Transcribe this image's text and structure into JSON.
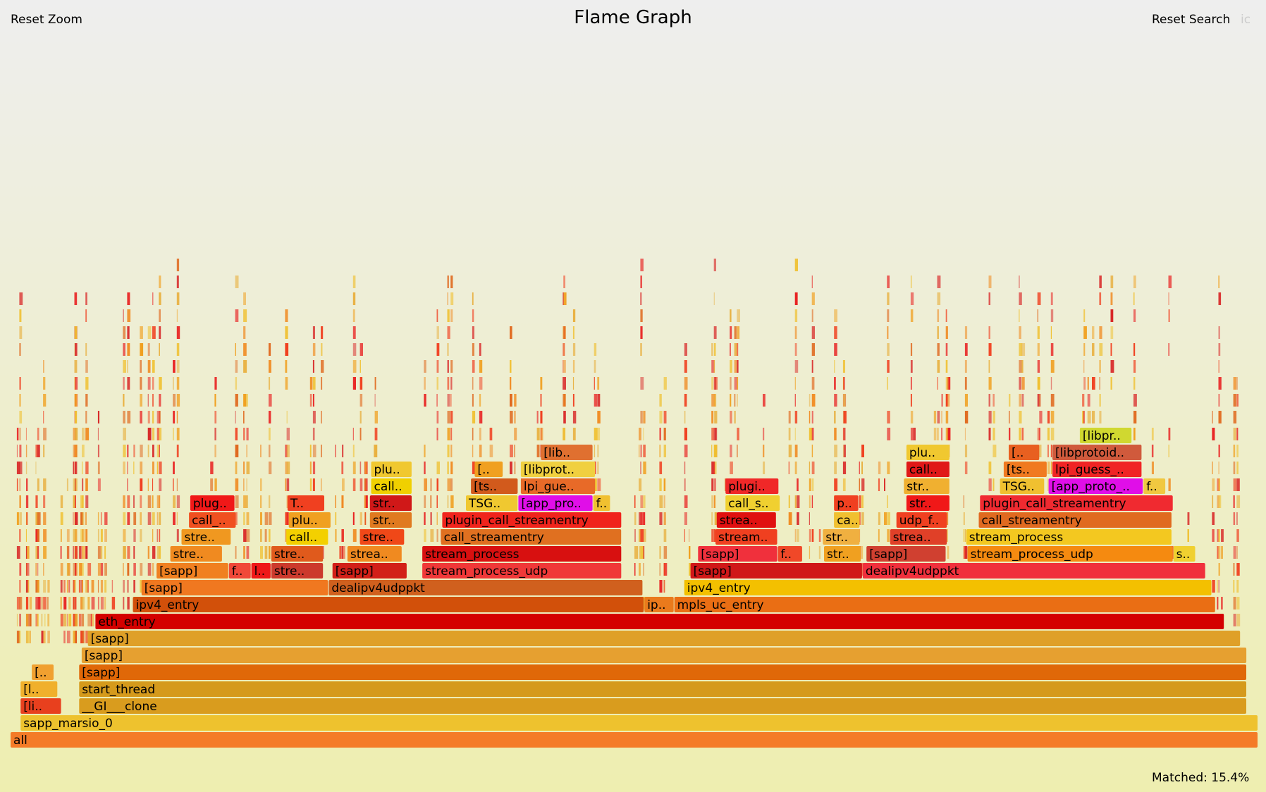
{
  "controls": {
    "reset_zoom": "Reset Zoom",
    "title": "Flame Graph",
    "reset_search": "Reset Search",
    "ic": "ic",
    "matched_label": "Matched:",
    "matched_value": "15.4%"
  },
  "chart_data": {
    "type": "flame graph",
    "title": "Flame Graph",
    "total_width_units": 1000,
    "frames": [
      {
        "name": "all",
        "depth": 0,
        "start": 0,
        "width": 1000,
        "color": "#f47b28"
      },
      {
        "name": "sapp_marsio_0",
        "depth": 1,
        "start": 8,
        "width": 992,
        "color": "#eec22e"
      },
      {
        "name": "[li..",
        "depth": 2,
        "start": 8,
        "width": 33,
        "color": "#e8401e"
      },
      {
        "name": "__GI___clone",
        "depth": 2,
        "start": 55,
        "width": 936,
        "color": "#d99c1e"
      },
      {
        "name": "[l..",
        "depth": 3,
        "start": 8,
        "width": 30,
        "color": "#f0b02c"
      },
      {
        "name": "start_thread",
        "depth": 3,
        "start": 55,
        "width": 936,
        "color": "#d59a1c"
      },
      {
        "name": "[..",
        "depth": 4,
        "start": 17,
        "width": 18,
        "color": "#f0a030"
      },
      {
        "name": "[sapp]",
        "depth": 4,
        "start": 55,
        "width": 936,
        "color": "#e06808"
      },
      {
        "name": "[sapp]",
        "depth": 5,
        "start": 57,
        "width": 934,
        "color": "#e6a030"
      },
      {
        "name": "[sapp]",
        "depth": 6,
        "start": 62,
        "width": 924,
        "color": "#dfa028"
      },
      {
        "name": "eth_entry",
        "depth": 7,
        "start": 68,
        "width": 905,
        "color": "#d40000"
      },
      {
        "name": "ipv4_entry",
        "depth": 8,
        "start": 98,
        "width": 410,
        "color": "#d2500a"
      },
      {
        "name": "ip..",
        "depth": 8,
        "start": 508,
        "width": 24,
        "color": "#ea7a1c"
      },
      {
        "name": "mpls_uc_entry",
        "depth": 8,
        "start": 532,
        "width": 434,
        "color": "#ea6e14"
      },
      {
        "name": "[sapp]",
        "depth": 9,
        "start": 105,
        "width": 150,
        "color": "#f07820"
      },
      {
        "name": "dealipv4udppkt",
        "depth": 9,
        "start": 255,
        "width": 252,
        "color": "#d0601e"
      },
      {
        "name": "ipv4_entry",
        "depth": 9,
        "start": 540,
        "width": 423,
        "color": "#f3c000"
      },
      {
        "name": "[sapp]",
        "depth": 10,
        "start": 117,
        "width": 58,
        "color": "#f08020"
      },
      {
        "name": "f..",
        "depth": 10,
        "start": 175,
        "width": 18,
        "color": "#f04838"
      },
      {
        "name": "l..",
        "depth": 10,
        "start": 193,
        "width": 16,
        "color": "#ee1818"
      },
      {
        "name": "stre..",
        "depth": 10,
        "start": 209,
        "width": 42,
        "color": "#cc3a2c"
      },
      {
        "name": "[sapp]",
        "depth": 10,
        "start": 258,
        "width": 60,
        "color": "#d22018"
      },
      {
        "name": "stream_process_udp",
        "depth": 10,
        "start": 330,
        "width": 160,
        "color": "#f03838"
      },
      {
        "name": "[sapp]",
        "depth": 10,
        "start": 545,
        "width": 138,
        "color": "#d01818"
      },
      {
        "name": "dealipv4udppkt",
        "depth": 10,
        "start": 683,
        "width": 275,
        "color": "#f0303c"
      },
      {
        "name": "stre..",
        "depth": 11,
        "start": 128,
        "width": 42,
        "color": "#f08a20"
      },
      {
        "name": "stre..",
        "depth": 11,
        "start": 209,
        "width": 42,
        "color": "#e05a1c"
      },
      {
        "name": "strea..",
        "depth": 11,
        "start": 270,
        "width": 44,
        "color": "#f08a20"
      },
      {
        "name": "stream_process",
        "depth": 11,
        "start": 330,
        "width": 160,
        "color": "#d81010"
      },
      {
        "name": "[sapp]",
        "depth": 11,
        "start": 551,
        "width": 64,
        "color": "#f0303c"
      },
      {
        "name": "f..",
        "depth": 11,
        "start": 615,
        "width": 20,
        "color": "#f04828"
      },
      {
        "name": "str..",
        "depth": 11,
        "start": 652,
        "width": 30,
        "color": "#f0a020"
      },
      {
        "name": "[sapp]",
        "depth": 11,
        "start": 686,
        "width": 64,
        "color": "#d04030"
      },
      {
        "name": "stream_process_udp",
        "depth": 11,
        "start": 767,
        "width": 165,
        "color": "#f58a10"
      },
      {
        "name": "s..",
        "depth": 11,
        "start": 932,
        "width": 18,
        "color": "#f0d030"
      },
      {
        "name": "stre..",
        "depth": 12,
        "start": 137,
        "width": 40,
        "color": "#f09820"
      },
      {
        "name": "call..",
        "depth": 12,
        "start": 221,
        "width": 34,
        "color": "#f3d000"
      },
      {
        "name": "stre..",
        "depth": 12,
        "start": 280,
        "width": 36,
        "color": "#f04818"
      },
      {
        "name": "call_streamentry",
        "depth": 12,
        "start": 345,
        "width": 145,
        "color": "#e07020"
      },
      {
        "name": "stream..",
        "depth": 12,
        "start": 565,
        "width": 50,
        "color": "#f04020"
      },
      {
        "name": "str..",
        "depth": 12,
        "start": 651,
        "width": 30,
        "color": "#f0b040"
      },
      {
        "name": "strea..",
        "depth": 12,
        "start": 705,
        "width": 46,
        "color": "#e04028"
      },
      {
        "name": "stream_process",
        "depth": 12,
        "start": 766,
        "width": 165,
        "color": "#f3c820"
      },
      {
        "name": "call_..",
        "depth": 13,
        "start": 143,
        "width": 38,
        "color": "#f05020"
      },
      {
        "name": "plu..",
        "depth": 13,
        "start": 223,
        "width": 34,
        "color": "#f0a020"
      },
      {
        "name": "str..",
        "depth": 13,
        "start": 288,
        "width": 34,
        "color": "#e07a20"
      },
      {
        "name": "plugin_call_streamentry",
        "depth": 13,
        "start": 346,
        "width": 144,
        "color": "#f0241c"
      },
      {
        "name": "strea..",
        "depth": 13,
        "start": 566,
        "width": 48,
        "color": "#e01010"
      },
      {
        "name": "ca..",
        "depth": 13,
        "start": 660,
        "width": 21,
        "color": "#f0c030"
      },
      {
        "name": "udp_f..",
        "depth": 13,
        "start": 710,
        "width": 41,
        "color": "#f04020"
      },
      {
        "name": "call_streamentry",
        "depth": 13,
        "start": 776,
        "width": 155,
        "color": "#e06a20"
      },
      {
        "name": "plug..",
        "depth": 14,
        "start": 144,
        "width": 36,
        "color": "#f01818"
      },
      {
        "name": "T..",
        "depth": 14,
        "start": 222,
        "width": 30,
        "color": "#f04020"
      },
      {
        "name": "str..",
        "depth": 14,
        "start": 288,
        "width": 34,
        "color": "#d01818"
      },
      {
        "name": "TSG..",
        "depth": 14,
        "start": 365,
        "width": 42,
        "color": "#f0c830"
      },
      {
        "name": "[app_pro..",
        "depth": 14,
        "start": 407,
        "width": 60,
        "color": "#e00ee8"
      },
      {
        "name": "f..",
        "depth": 14,
        "start": 467,
        "width": 14,
        "color": "#f0c030"
      },
      {
        "name": "call_s..",
        "depth": 14,
        "start": 573,
        "width": 44,
        "color": "#f0d030"
      },
      {
        "name": "p..",
        "depth": 14,
        "start": 660,
        "width": 20,
        "color": "#f04020"
      },
      {
        "name": "str..",
        "depth": 14,
        "start": 718,
        "width": 35,
        "color": "#f01818"
      },
      {
        "name": "plugin_call_streamentry",
        "depth": 14,
        "start": 777,
        "width": 155,
        "color": "#f02a30"
      },
      {
        "name": "call..",
        "depth": 15,
        "start": 289,
        "width": 33,
        "color": "#f0d000"
      },
      {
        "name": "[ts..",
        "depth": 15,
        "start": 369,
        "width": 38,
        "color": "#d25a1c"
      },
      {
        "name": "lpi_gue..",
        "depth": 15,
        "start": 409,
        "width": 60,
        "color": "#e86a28"
      },
      {
        "name": "plugi..",
        "depth": 15,
        "start": 573,
        "width": 43,
        "color": "#f02828"
      },
      {
        "name": "str..",
        "depth": 15,
        "start": 716,
        "width": 37,
        "color": "#f0b030"
      },
      {
        "name": "TSG..",
        "depth": 15,
        "start": 793,
        "width": 36,
        "color": "#f0c030"
      },
      {
        "name": "[app_proto_..",
        "depth": 15,
        "start": 832,
        "width": 76,
        "color": "#e00ee8"
      },
      {
        "name": "f..",
        "depth": 15,
        "start": 908,
        "width": 18,
        "color": "#f0c840"
      },
      {
        "name": "plu..",
        "depth": 16,
        "start": 289,
        "width": 33,
        "color": "#f0c830"
      },
      {
        "name": "[..",
        "depth": 16,
        "start": 372,
        "width": 23,
        "color": "#f0a020"
      },
      {
        "name": "[libprot..",
        "depth": 16,
        "start": 409,
        "width": 60,
        "color": "#f0d040"
      },
      {
        "name": "call..",
        "depth": 16,
        "start": 718,
        "width": 35,
        "color": "#e01818"
      },
      {
        "name": "[ts..",
        "depth": 16,
        "start": 796,
        "width": 35,
        "color": "#f07a20"
      },
      {
        "name": "lpi_guess_..",
        "depth": 16,
        "start": 835,
        "width": 72,
        "color": "#f02424"
      },
      {
        "name": "[lib..",
        "depth": 17,
        "start": 425,
        "width": 42,
        "color": "#e07030"
      },
      {
        "name": "plu..",
        "depth": 17,
        "start": 718,
        "width": 35,
        "color": "#f0c830"
      },
      {
        "name": "[..",
        "depth": 17,
        "start": 800,
        "width": 25,
        "color": "#e86020"
      },
      {
        "name": "[libprotoid..",
        "depth": 17,
        "start": 835,
        "width": 72,
        "color": "#d05a3c"
      },
      {
        "name": "[libpr..",
        "depth": 18,
        "start": 857,
        "width": 42,
        "color": "#d0d830"
      }
    ]
  }
}
